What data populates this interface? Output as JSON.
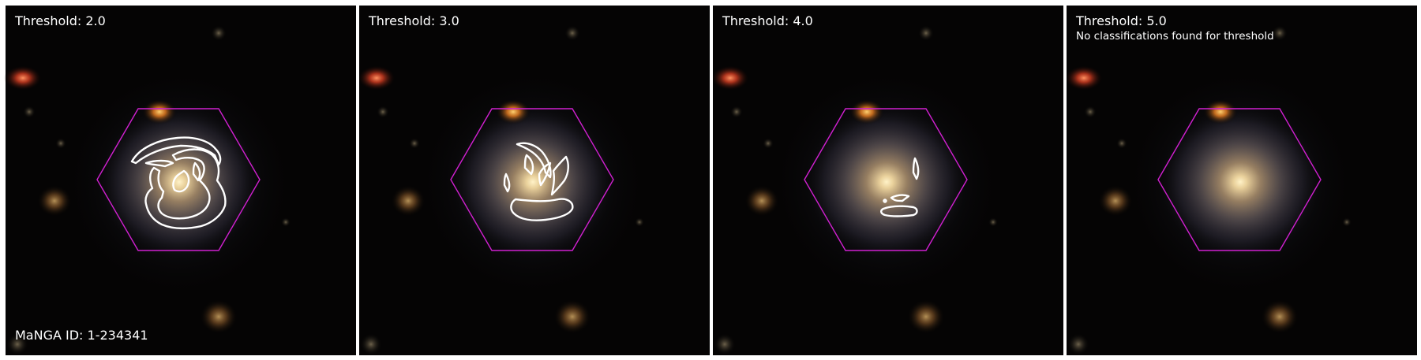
{
  "colors": {
    "background": "#000000",
    "separator": "#ffffff",
    "hexagon": "#d020d0",
    "contour": "#ffffff"
  },
  "manga_label": "MaNGA ID: 1-234341",
  "panels": [
    {
      "title": "Threshold: 2.0",
      "note": ""
    },
    {
      "title": "Threshold: 3.0",
      "note": ""
    },
    {
      "title": "Threshold: 4.0",
      "note": ""
    },
    {
      "title": "Threshold: 5.0",
      "note": "No classifications found for threshold"
    }
  ]
}
